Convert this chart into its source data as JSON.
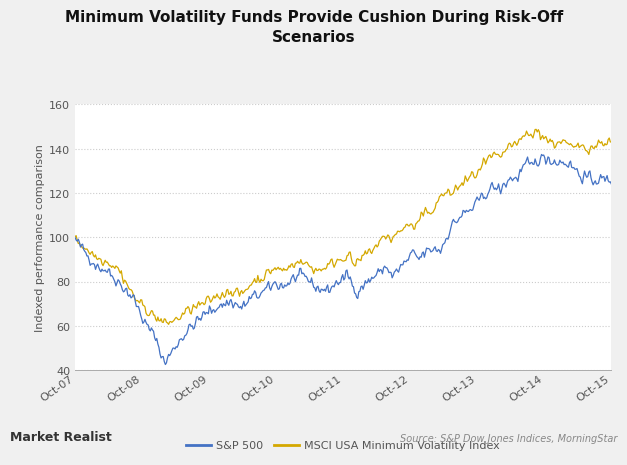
{
  "title": "Minimum Volatility Funds Provide Cushion During Risk-Off\nScenarios",
  "ylabel": "Indexed performance comparison",
  "ylim": [
    40,
    160
  ],
  "yticks": [
    40,
    60,
    80,
    100,
    120,
    140,
    160
  ],
  "xtick_labels": [
    "Oct-07",
    "Oct-08",
    "Oct-09",
    "Oct-10",
    "Oct-11",
    "Oct-12",
    "Oct-13",
    "Oct-14",
    "Oct-15"
  ],
  "sp500_color": "#4472c4",
  "msci_color": "#d4a800",
  "background_color": "#f0f0f0",
  "plot_bg_color": "#ffffff",
  "source_text": "Source: S&P Dow Jones Indices, MorningStar",
  "watermark": "Market Realist",
  "legend_sp500": "S&P 500",
  "legend_msci": "MSCI USA Minimum Volatility Index",
  "grid_color": "#cccccc",
  "title_color": "#111111",
  "axis_label_color": "#555555",
  "tick_label_color": "#555555"
}
